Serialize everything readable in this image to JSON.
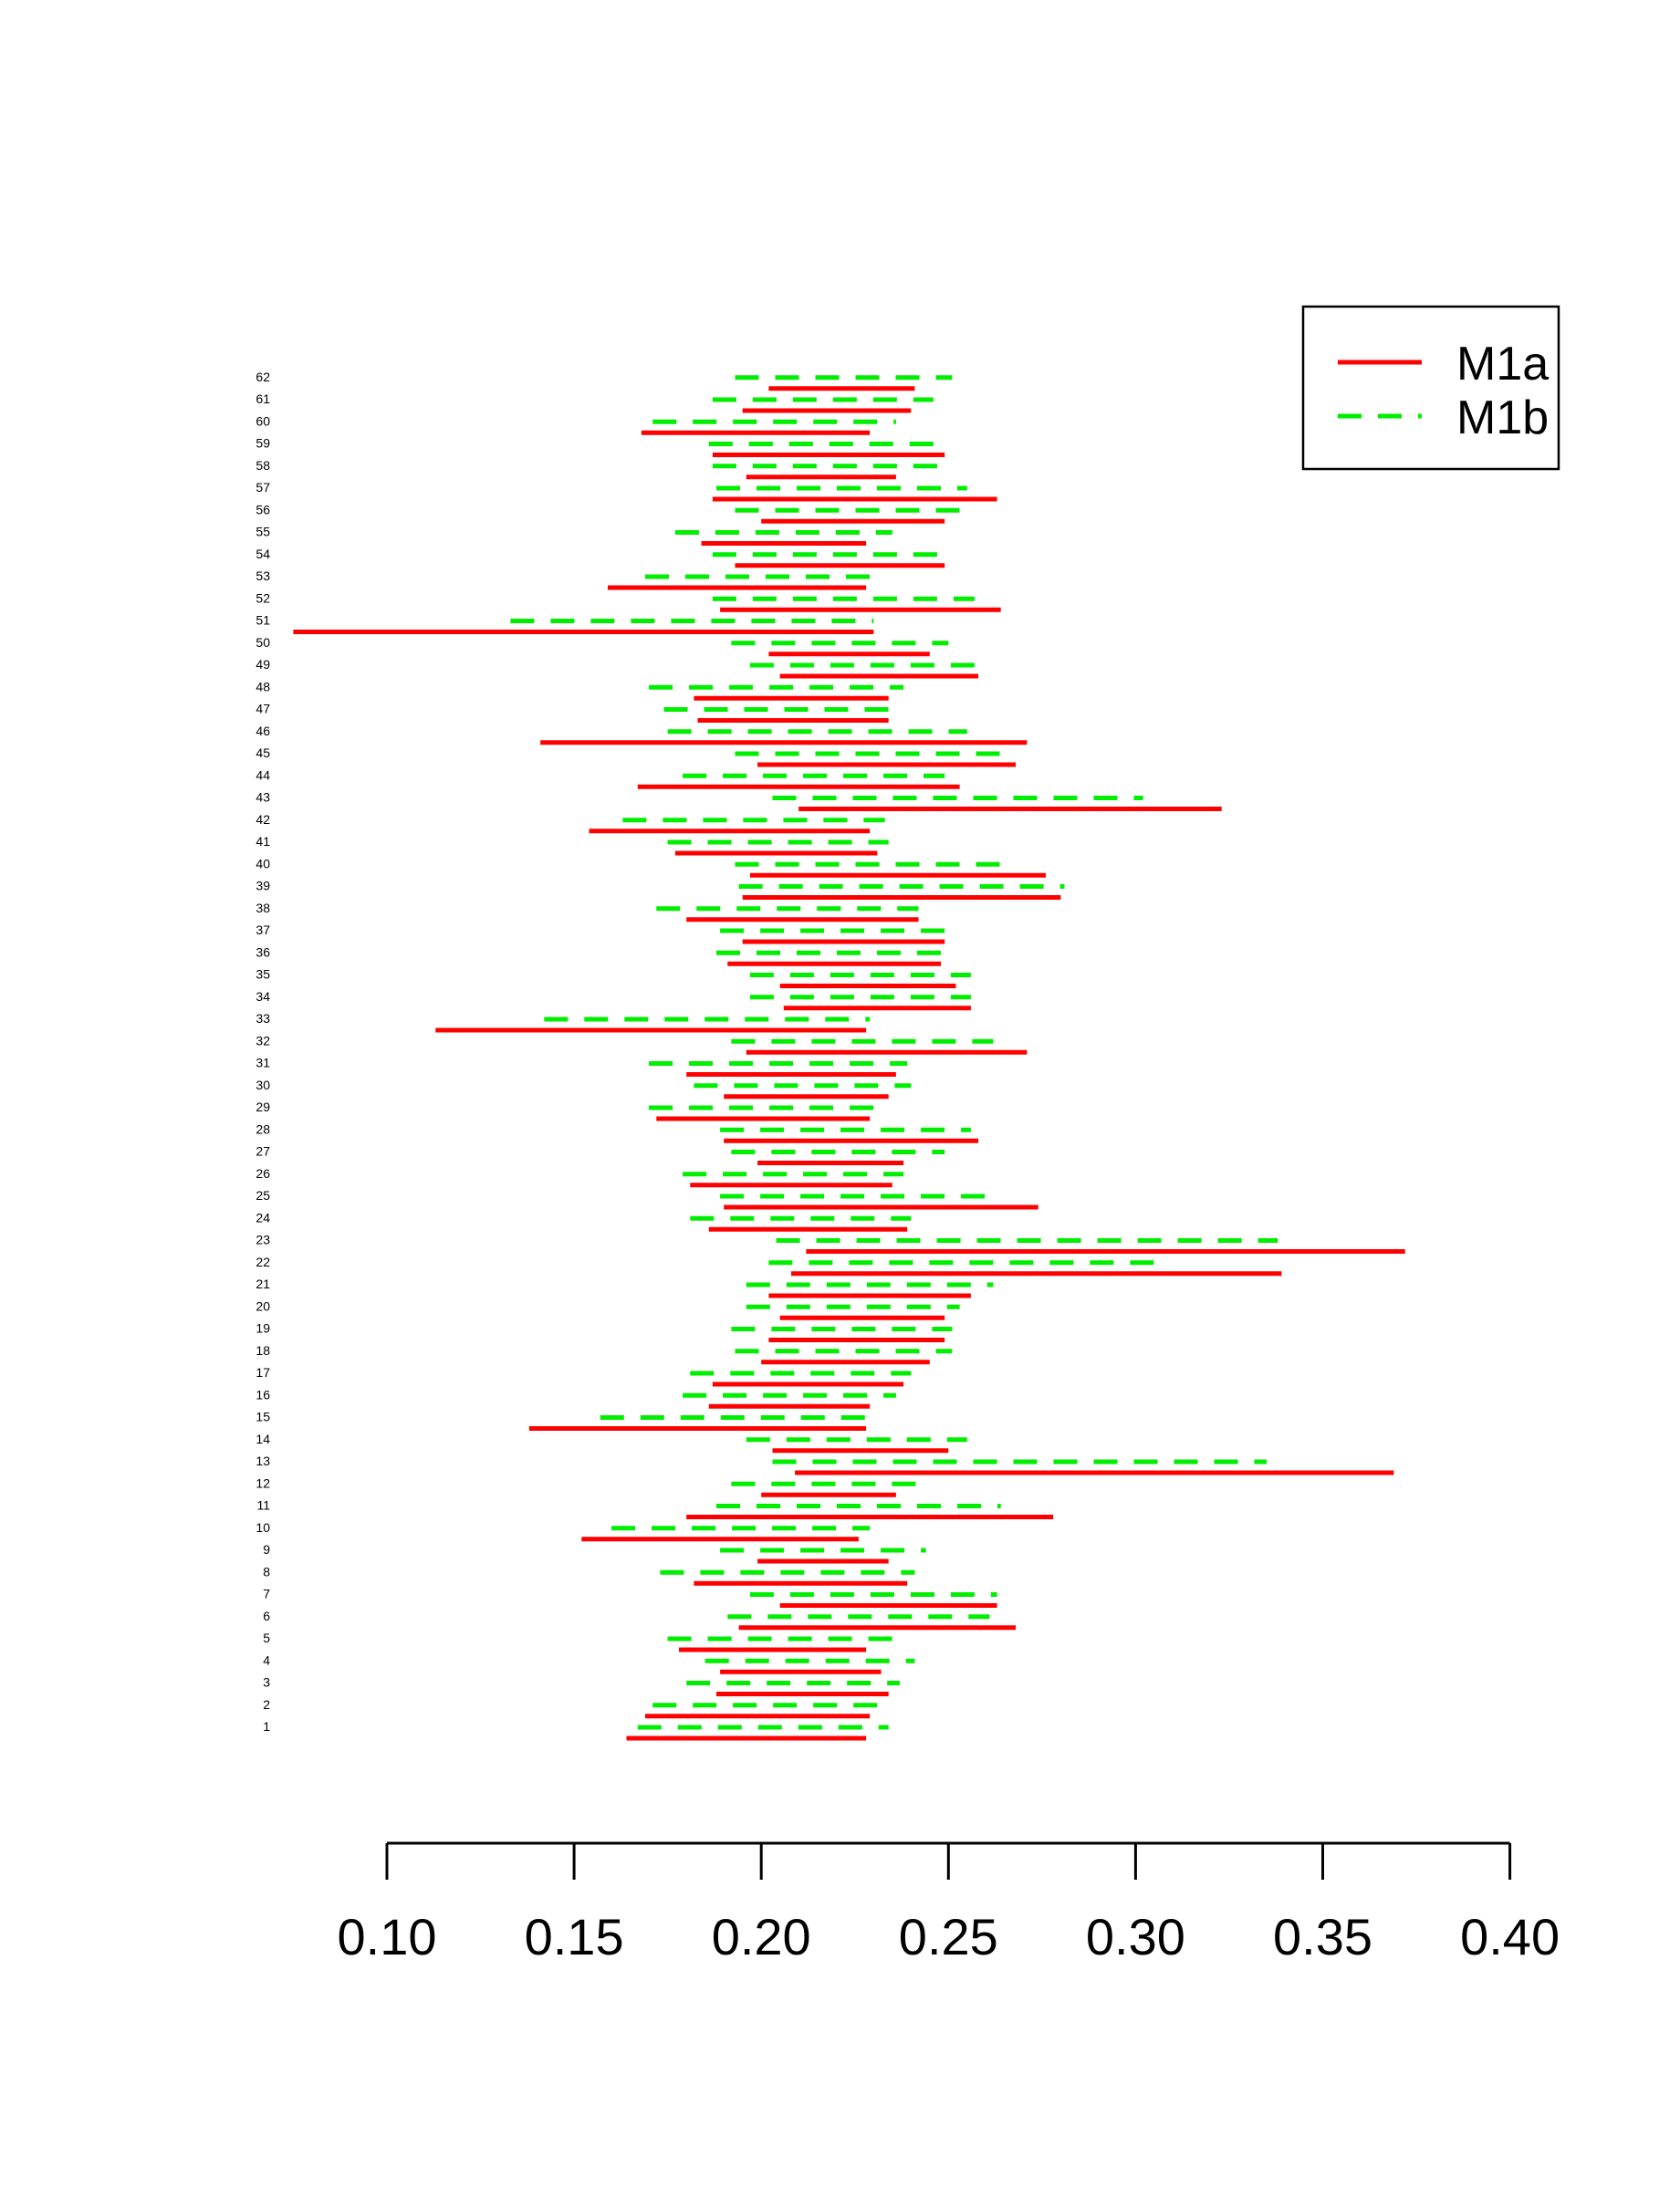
{
  "chart_data": {
    "type": "interval",
    "title": "",
    "xlabel": "",
    "ylabel": "",
    "xlim": [
      0.075,
      0.4
    ],
    "x_ticks": [
      "0.10",
      "0.15",
      "0.20",
      "0.25",
      "0.30",
      "0.35",
      "0.40"
    ],
    "x_tick_values": [
      0.1,
      0.15,
      0.2,
      0.25,
      0.3,
      0.35,
      0.4
    ],
    "rows": [
      "1",
      "2",
      "3",
      "4",
      "5",
      "6",
      "7",
      "8",
      "9",
      "10",
      "11",
      "12",
      "13",
      "14",
      "15",
      "16",
      "17",
      "18",
      "19",
      "20",
      "21",
      "22",
      "23",
      "24",
      "25",
      "26",
      "27",
      "28",
      "29",
      "30",
      "31",
      "32",
      "33",
      "34",
      "35",
      "36",
      "37",
      "38",
      "39",
      "40",
      "41",
      "42",
      "43",
      "44",
      "45",
      "46",
      "47",
      "48",
      "49",
      "50",
      "51",
      "52",
      "53",
      "54",
      "55",
      "56",
      "57",
      "58",
      "59",
      "60",
      "61",
      "62"
    ],
    "legend": {
      "position": "top-right",
      "entries": [
        "M1a",
        "M1b"
      ]
    },
    "series": [
      {
        "name": "M1a",
        "color": "#ff0000",
        "style": "solid",
        "intervals": [
          [
            0.164,
            0.228
          ],
          [
            0.169,
            0.229
          ],
          [
            0.188,
            0.234
          ],
          [
            0.189,
            0.232
          ],
          [
            0.178,
            0.228
          ],
          [
            0.194,
            0.268
          ],
          [
            0.205,
            0.263
          ],
          [
            0.182,
            0.239
          ],
          [
            0.199,
            0.234
          ],
          [
            0.152,
            0.226
          ],
          [
            0.18,
            0.278
          ],
          [
            0.2,
            0.236
          ],
          [
            0.209,
            0.369
          ],
          [
            0.203,
            0.25
          ],
          [
            0.138,
            0.228
          ],
          [
            0.186,
            0.229
          ],
          [
            0.187,
            0.238
          ],
          [
            0.2,
            0.245
          ],
          [
            0.202,
            0.249
          ],
          [
            0.205,
            0.249
          ],
          [
            0.202,
            0.256
          ],
          [
            0.208,
            0.339
          ],
          [
            0.212,
            0.372
          ],
          [
            0.186,
            0.239
          ],
          [
            0.19,
            0.274
          ],
          [
            0.181,
            0.235
          ],
          [
            0.199,
            0.238
          ],
          [
            0.19,
            0.258
          ],
          [
            0.172,
            0.229
          ],
          [
            0.19,
            0.234
          ],
          [
            0.18,
            0.236
          ],
          [
            0.196,
            0.271
          ],
          [
            0.113,
            0.228
          ],
          [
            0.206,
            0.256
          ],
          [
            0.205,
            0.252
          ],
          [
            0.191,
            0.248
          ],
          [
            0.195,
            0.249
          ],
          [
            0.18,
            0.242
          ],
          [
            0.195,
            0.28
          ],
          [
            0.197,
            0.276
          ],
          [
            0.177,
            0.231
          ],
          [
            0.154,
            0.229
          ],
          [
            0.21,
            0.323
          ],
          [
            0.167,
            0.253
          ],
          [
            0.199,
            0.268
          ],
          [
            0.141,
            0.271
          ],
          [
            0.183,
            0.234
          ],
          [
            0.182,
            0.234
          ],
          [
            0.205,
            0.258
          ],
          [
            0.202,
            0.245
          ],
          [
            0.075,
            0.23
          ],
          [
            0.189,
            0.264
          ],
          [
            0.159,
            0.228
          ],
          [
            0.193,
            0.249
          ],
          [
            0.184,
            0.228
          ],
          [
            0.2,
            0.249
          ],
          [
            0.187,
            0.263
          ],
          [
            0.196,
            0.236
          ],
          [
            0.187,
            0.249
          ],
          [
            0.168,
            0.229
          ],
          [
            0.195,
            0.24
          ],
          [
            0.202,
            0.241
          ]
        ]
      },
      {
        "name": "M1b",
        "color": "#00ee00",
        "style": "dashed",
        "intervals": [
          [
            0.167,
            0.234
          ],
          [
            0.171,
            0.235
          ],
          [
            0.18,
            0.237
          ],
          [
            0.185,
            0.241
          ],
          [
            0.175,
            0.235
          ],
          [
            0.191,
            0.261
          ],
          [
            0.197,
            0.263
          ],
          [
            0.173,
            0.241
          ],
          [
            0.189,
            0.244
          ],
          [
            0.16,
            0.229
          ],
          [
            0.188,
            0.264
          ],
          [
            0.192,
            0.245
          ],
          [
            0.203,
            0.335
          ],
          [
            0.196,
            0.255
          ],
          [
            0.157,
            0.232
          ],
          [
            0.179,
            0.236
          ],
          [
            0.181,
            0.24
          ],
          [
            0.193,
            0.251
          ],
          [
            0.192,
            0.251
          ],
          [
            0.196,
            0.253
          ],
          [
            0.196,
            0.262
          ],
          [
            0.202,
            0.309
          ],
          [
            0.204,
            0.338
          ],
          [
            0.181,
            0.24
          ],
          [
            0.189,
            0.26
          ],
          [
            0.179,
            0.238
          ],
          [
            0.192,
            0.249
          ],
          [
            0.189,
            0.256
          ],
          [
            0.17,
            0.234
          ],
          [
            0.182,
            0.24
          ],
          [
            0.17,
            0.239
          ],
          [
            0.192,
            0.262
          ],
          [
            0.142,
            0.229
          ],
          [
            0.197,
            0.256
          ],
          [
            0.197,
            0.256
          ],
          [
            0.188,
            0.25
          ],
          [
            0.189,
            0.249
          ],
          [
            0.172,
            0.242
          ],
          [
            0.194,
            0.281
          ],
          [
            0.193,
            0.264
          ],
          [
            0.175,
            0.234
          ],
          [
            0.163,
            0.233
          ],
          [
            0.203,
            0.302
          ],
          [
            0.179,
            0.249
          ],
          [
            0.193,
            0.264
          ],
          [
            0.175,
            0.255
          ],
          [
            0.174,
            0.234
          ],
          [
            0.17,
            0.238
          ],
          [
            0.197,
            0.257
          ],
          [
            0.192,
            0.25
          ],
          [
            0.133,
            0.23
          ],
          [
            0.187,
            0.257
          ],
          [
            0.169,
            0.233
          ],
          [
            0.187,
            0.248
          ],
          [
            0.177,
            0.235
          ],
          [
            0.193,
            0.253
          ],
          [
            0.188,
            0.255
          ],
          [
            0.187,
            0.248
          ],
          [
            0.186,
            0.25
          ],
          [
            0.171,
            0.236
          ],
          [
            0.187,
            0.246
          ],
          [
            0.193,
            0.251
          ]
        ]
      }
    ]
  }
}
